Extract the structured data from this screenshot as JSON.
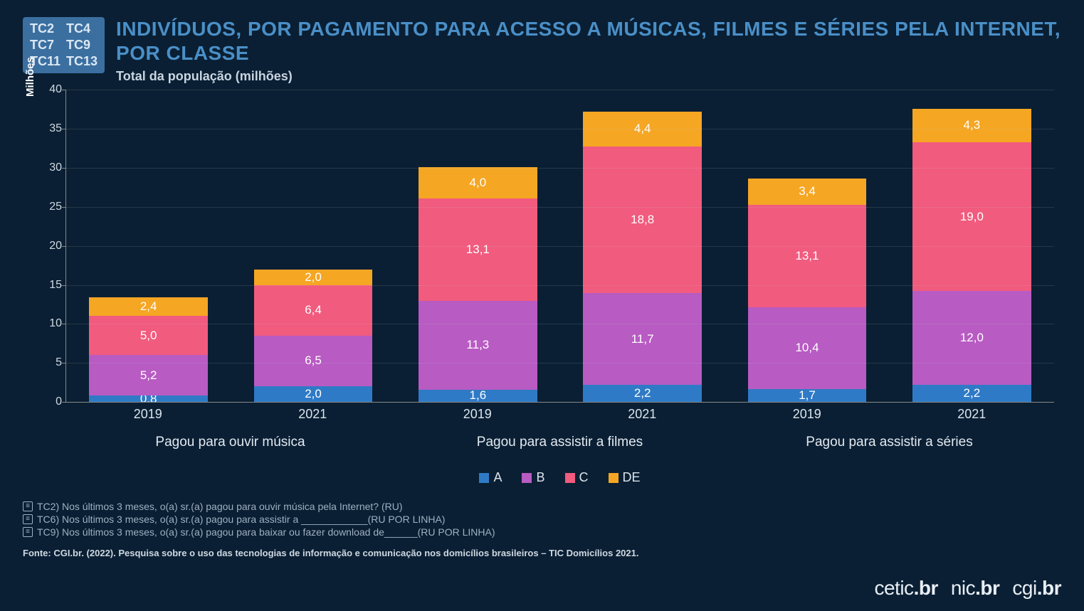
{
  "tags": [
    "TC2",
    "TC4",
    "TC7",
    "TC9",
    "TC11",
    "TC13"
  ],
  "title": "INDIVÍDUOS, POR PAGAMENTO PARA ACESSO A MÚSICAS, FILMES E SÉRIES PELA INTERNET, POR CLASSE",
  "subtitle": "Total da população (milhões)",
  "y_axis_label": "Milhões",
  "chart": {
    "type": "stacked-bar",
    "background_color": "#0a1f33",
    "grid_color": "rgba(200,200,200,0.15)",
    "axis_color": "#888888",
    "text_color": "#dbe4ee",
    "ylim": [
      0,
      40
    ],
    "ytick_step": 5,
    "label_fontsize": 17,
    "axis_fontsize": 18,
    "bar_width_pct": 72,
    "series": [
      {
        "key": "A",
        "label": "A",
        "color": "#2f7ac6"
      },
      {
        "key": "B",
        "label": "B",
        "color": "#b85bc3"
      },
      {
        "key": "C",
        "label": "C",
        "color": "#f15b7e"
      },
      {
        "key": "DE",
        "label": "DE",
        "color": "#f5a623"
      }
    ],
    "groups": [
      {
        "label": "Pagou para ouvir música",
        "bars": [
          {
            "year": "2019",
            "values": {
              "A": 0.8,
              "B": 5.2,
              "C": 5.0,
              "DE": 2.4
            }
          },
          {
            "year": "2021",
            "values": {
              "A": 2.0,
              "B": 6.5,
              "C": 6.4,
              "DE": 2.0
            }
          }
        ]
      },
      {
        "label": "Pagou para assistir a filmes",
        "bars": [
          {
            "year": "2019",
            "values": {
              "A": 1.6,
              "B": 11.3,
              "C": 13.1,
              "DE": 4.0
            }
          },
          {
            "year": "2021",
            "values": {
              "A": 2.2,
              "B": 11.7,
              "C": 18.8,
              "DE": 4.4
            }
          }
        ]
      },
      {
        "label": "Pagou para assistir a séries",
        "bars": [
          {
            "year": "2019",
            "values": {
              "A": 1.7,
              "B": 10.4,
              "C": 13.1,
              "DE": 3.4
            }
          },
          {
            "year": "2021",
            "values": {
              "A": 2.2,
              "B": 12.0,
              "C": 19.0,
              "DE": 4.3
            }
          }
        ]
      }
    ]
  },
  "footnotes": [
    "TC2) Nos últimos 3 meses, o(a) sr.(a) pagou para ouvir música pela Internet? (RU)",
    "TC6) Nos últimos 3 meses, o(a) sr.(a) pagou para assistir a ____________(RU POR LINHA)",
    "TC9) Nos últimos 3 meses, o(a) sr.(a) pagou para baixar ou fazer download de______(RU POR LINHA)"
  ],
  "source": "Fonte: CGI.br. (2022). Pesquisa sobre o uso das tecnologias de informação e comunicação nos domicílios brasileiros – TIC Domicílios 2021.",
  "logos": [
    {
      "thin": "cetic",
      "bold": ".br"
    },
    {
      "thin": "nic",
      "bold": ".br"
    },
    {
      "thin": "cgi",
      "bold": ".br"
    }
  ]
}
